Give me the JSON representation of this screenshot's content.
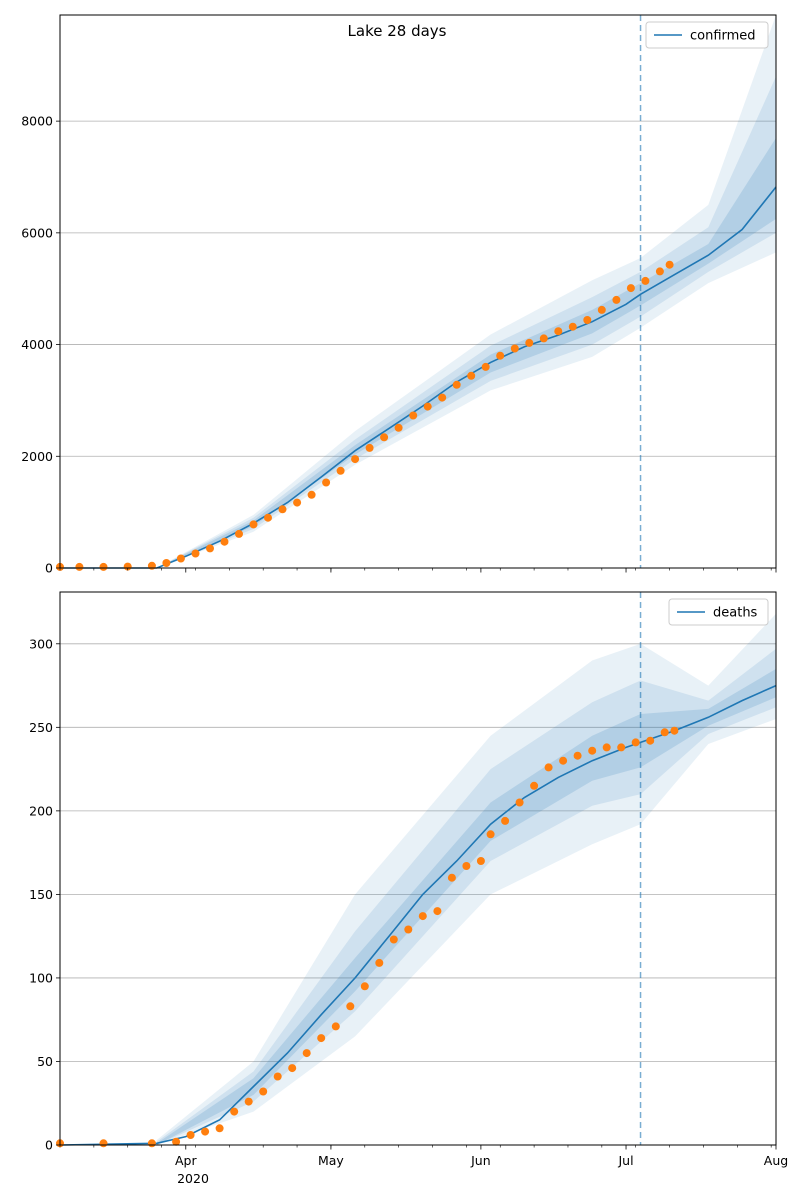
{
  "figure": {
    "title": "Lake 28 days"
  },
  "colors": {
    "line": "#1f77b4",
    "observed": "#ff7f0e",
    "band": "#1f77b4",
    "grid": "#b0b0b0",
    "cutoff": "#1f77b4"
  },
  "chart_data": [
    {
      "type": "line",
      "name": "confirmed-panel",
      "title": "Lake 28 days",
      "legend": [
        "confirmed"
      ],
      "legend_position": "top-right",
      "grid": "horizontal",
      "x_range": [
        "2020-03-06",
        "2020-08-01"
      ],
      "ylim": [
        0,
        9900
      ],
      "yticks": [
        0,
        2000,
        4000,
        6000,
        8000
      ],
      "forecast_start": "2020-07-04",
      "series": [
        {
          "name": "confirmed",
          "kind": "model-median",
          "points": [
            [
              "2020-03-06",
              0
            ],
            [
              "2020-03-26",
              0
            ],
            [
              "2020-04-01",
              210
            ],
            [
              "2020-04-08",
              480
            ],
            [
              "2020-04-15",
              800
            ],
            [
              "2020-04-22",
              1170
            ],
            [
              "2020-04-29",
              1630
            ],
            [
              "2020-05-06",
              2100
            ],
            [
              "2020-05-13",
              2500
            ],
            [
              "2020-05-20",
              2900
            ],
            [
              "2020-05-27",
              3330
            ],
            [
              "2020-06-03",
              3680
            ],
            [
              "2020-06-10",
              3960
            ],
            [
              "2020-06-17",
              4170
            ],
            [
              "2020-06-24",
              4410
            ],
            [
              "2020-07-01",
              4720
            ],
            [
              "2020-07-04",
              4900
            ],
            [
              "2020-07-11",
              5250
            ],
            [
              "2020-07-18",
              5600
            ],
            [
              "2020-07-25",
              6060
            ],
            [
              "2020-08-01",
              6820
            ]
          ]
        },
        {
          "name": "observed",
          "kind": "observed-points",
          "points": [
            [
              "2020-03-06",
              20
            ],
            [
              "2020-03-10",
              20
            ],
            [
              "2020-03-15",
              20
            ],
            [
              "2020-03-20",
              25
            ],
            [
              "2020-03-25",
              40
            ],
            [
              "2020-03-28",
              90
            ],
            [
              "2020-03-31",
              170
            ],
            [
              "2020-04-03",
              260
            ],
            [
              "2020-04-06",
              350
            ],
            [
              "2020-04-09",
              470
            ],
            [
              "2020-04-12",
              610
            ],
            [
              "2020-04-15",
              780
            ],
            [
              "2020-04-18",
              900
            ],
            [
              "2020-04-21",
              1050
            ],
            [
              "2020-04-24",
              1170
            ],
            [
              "2020-04-27",
              1310
            ],
            [
              "2020-04-30",
              1530
            ],
            [
              "2020-05-03",
              1740
            ],
            [
              "2020-05-06",
              1950
            ],
            [
              "2020-05-09",
              2150
            ],
            [
              "2020-05-12",
              2340
            ],
            [
              "2020-05-15",
              2510
            ],
            [
              "2020-05-18",
              2730
            ],
            [
              "2020-05-21",
              2890
            ],
            [
              "2020-05-24",
              3050
            ],
            [
              "2020-05-27",
              3280
            ],
            [
              "2020-05-30",
              3440
            ],
            [
              "2020-06-02",
              3600
            ],
            [
              "2020-06-05",
              3800
            ],
            [
              "2020-06-08",
              3930
            ],
            [
              "2020-06-11",
              4030
            ],
            [
              "2020-06-14",
              4110
            ],
            [
              "2020-06-17",
              4240
            ],
            [
              "2020-06-20",
              4320
            ],
            [
              "2020-06-23",
              4440
            ],
            [
              "2020-06-26",
              4620
            ],
            [
              "2020-06-29",
              4800
            ],
            [
              "2020-07-02",
              5010
            ],
            [
              "2020-07-05",
              5140
            ],
            [
              "2020-07-08",
              5310
            ],
            [
              "2020-07-10",
              5430
            ]
          ]
        }
      ],
      "bands": [
        {
          "level": "outer",
          "lower": [
            [
              "2020-03-26",
              0
            ],
            [
              "2020-04-15",
              650
            ],
            [
              "2020-05-06",
              1850
            ],
            [
              "2020-06-03",
              3180
            ],
            [
              "2020-06-24",
              3780
            ],
            [
              "2020-07-04",
              4300
            ],
            [
              "2020-07-18",
              5100
            ],
            [
              "2020-08-01",
              5650
            ]
          ],
          "upper": [
            [
              "2020-03-26",
              0
            ],
            [
              "2020-04-15",
              950
            ],
            [
              "2020-05-06",
              2450
            ],
            [
              "2020-06-03",
              4180
            ],
            [
              "2020-06-24",
              5150
            ],
            [
              "2020-07-04",
              5550
            ],
            [
              "2020-07-18",
              6500
            ],
            [
              "2020-08-01",
              9900
            ]
          ]
        },
        {
          "level": "middle",
          "lower": [
            [
              "2020-03-26",
              0
            ],
            [
              "2020-04-15",
              700
            ],
            [
              "2020-05-06",
              1950
            ],
            [
              "2020-06-03",
              3350
            ],
            [
              "2020-06-24",
              4000
            ],
            [
              "2020-07-04",
              4500
            ],
            [
              "2020-07-18",
              5300
            ],
            [
              "2020-08-01",
              6000
            ]
          ],
          "upper": [
            [
              "2020-03-26",
              0
            ],
            [
              "2020-04-15",
              900
            ],
            [
              "2020-05-06",
              2300
            ],
            [
              "2020-06-03",
              3980
            ],
            [
              "2020-06-24",
              4850
            ],
            [
              "2020-07-04",
              5300
            ],
            [
              "2020-07-18",
              6100
            ],
            [
              "2020-08-01",
              8800
            ]
          ]
        },
        {
          "level": "inner",
          "lower": [
            [
              "2020-03-26",
              0
            ],
            [
              "2020-04-15",
              750
            ],
            [
              "2020-05-06",
              2030
            ],
            [
              "2020-06-03",
              3500
            ],
            [
              "2020-06-24",
              4200
            ],
            [
              "2020-07-04",
              4700
            ],
            [
              "2020-07-18",
              5450
            ],
            [
              "2020-08-01",
              6250
            ]
          ],
          "upper": [
            [
              "2020-03-26",
              0
            ],
            [
              "2020-04-15",
              850
            ],
            [
              "2020-05-06",
              2200
            ],
            [
              "2020-06-03",
              3820
            ],
            [
              "2020-06-24",
              4620
            ],
            [
              "2020-07-04",
              5100
            ],
            [
              "2020-07-18",
              5800
            ],
            [
              "2020-08-01",
              7700
            ]
          ]
        }
      ]
    },
    {
      "type": "line",
      "name": "deaths-panel",
      "title": "",
      "legend": [
        "deaths"
      ],
      "legend_position": "top-right",
      "grid": "horizontal",
      "x_range": [
        "2020-03-06",
        "2020-08-01"
      ],
      "xticks": [
        "Apr",
        "May",
        "Jun",
        "Jul",
        "Aug"
      ],
      "xtick_year": "2020",
      "ylim": [
        0,
        331
      ],
      "yticks": [
        0,
        50,
        100,
        150,
        200,
        250,
        300
      ],
      "forecast_start": "2020-07-04",
      "series": [
        {
          "name": "deaths",
          "kind": "model-median",
          "points": [
            [
              "2020-03-06",
              0
            ],
            [
              "2020-03-26",
              1
            ],
            [
              "2020-04-01",
              5
            ],
            [
              "2020-04-08",
              15
            ],
            [
              "2020-04-15",
              35
            ],
            [
              "2020-04-22",
              55
            ],
            [
              "2020-04-29",
              78
            ],
            [
              "2020-05-06",
              100
            ],
            [
              "2020-05-13",
              125
            ],
            [
              "2020-05-20",
              150
            ],
            [
              "2020-05-27",
              170
            ],
            [
              "2020-06-03",
              192
            ],
            [
              "2020-06-10",
              208
            ],
            [
              "2020-06-17",
              220
            ],
            [
              "2020-06-24",
              230
            ],
            [
              "2020-07-01",
              238
            ],
            [
              "2020-07-04",
              241
            ],
            [
              "2020-07-11",
              248
            ],
            [
              "2020-07-18",
              256
            ],
            [
              "2020-07-25",
              266
            ],
            [
              "2020-08-01",
              275
            ]
          ]
        },
        {
          "name": "observed",
          "kind": "observed-points",
          "points": [
            [
              "2020-03-06",
              1
            ],
            [
              "2020-03-15",
              1
            ],
            [
              "2020-03-25",
              1
            ],
            [
              "2020-03-30",
              2
            ],
            [
              "2020-04-02",
              6
            ],
            [
              "2020-04-05",
              8
            ],
            [
              "2020-04-08",
              10
            ],
            [
              "2020-04-11",
              20
            ],
            [
              "2020-04-14",
              26
            ],
            [
              "2020-04-17",
              32
            ],
            [
              "2020-04-20",
              41
            ],
            [
              "2020-04-23",
              46
            ],
            [
              "2020-04-26",
              55
            ],
            [
              "2020-04-29",
              64
            ],
            [
              "2020-05-02",
              71
            ],
            [
              "2020-05-05",
              83
            ],
            [
              "2020-05-08",
              95
            ],
            [
              "2020-05-11",
              109
            ],
            [
              "2020-05-14",
              123
            ],
            [
              "2020-05-17",
              129
            ],
            [
              "2020-05-20",
              137
            ],
            [
              "2020-05-23",
              140
            ],
            [
              "2020-05-26",
              160
            ],
            [
              "2020-05-29",
              167
            ],
            [
              "2020-06-01",
              170
            ],
            [
              "2020-06-03",
              186
            ],
            [
              "2020-06-06",
              194
            ],
            [
              "2020-06-09",
              205
            ],
            [
              "2020-06-12",
              215
            ],
            [
              "2020-06-15",
              226
            ],
            [
              "2020-06-18",
              230
            ],
            [
              "2020-06-21",
              233
            ],
            [
              "2020-06-24",
              236
            ],
            [
              "2020-06-27",
              238
            ],
            [
              "2020-06-30",
              238
            ],
            [
              "2020-07-03",
              241
            ],
            [
              "2020-07-06",
              242
            ],
            [
              "2020-07-09",
              247
            ],
            [
              "2020-07-11",
              248
            ]
          ]
        }
      ],
      "bands": [
        {
          "level": "outer",
          "lower": [
            [
              "2020-03-26",
              0
            ],
            [
              "2020-04-15",
              20
            ],
            [
              "2020-05-06",
              65
            ],
            [
              "2020-06-03",
              150
            ],
            [
              "2020-06-24",
              180
            ],
            [
              "2020-07-04",
              192
            ],
            [
              "2020-07-18",
              240
            ],
            [
              "2020-08-01",
              255
            ]
          ],
          "upper": [
            [
              "2020-03-26",
              3
            ],
            [
              "2020-04-15",
              50
            ],
            [
              "2020-05-06",
              150
            ],
            [
              "2020-06-03",
              245
            ],
            [
              "2020-06-24",
              290
            ],
            [
              "2020-07-04",
              300
            ],
            [
              "2020-07-18",
              275
            ],
            [
              "2020-08-01",
              318
            ]
          ]
        },
        {
          "level": "middle",
          "lower": [
            [
              "2020-03-26",
              0
            ],
            [
              "2020-04-15",
              26
            ],
            [
              "2020-05-06",
              80
            ],
            [
              "2020-06-03",
              170
            ],
            [
              "2020-06-24",
              203
            ],
            [
              "2020-07-04",
              210
            ],
            [
              "2020-07-18",
              246
            ],
            [
              "2020-08-01",
              262
            ]
          ],
          "upper": [
            [
              "2020-03-26",
              2
            ],
            [
              "2020-04-15",
              44
            ],
            [
              "2020-05-06",
              128
            ],
            [
              "2020-06-03",
              225
            ],
            [
              "2020-06-24",
              265
            ],
            [
              "2020-07-04",
              278
            ],
            [
              "2020-07-18",
              266
            ],
            [
              "2020-08-01",
              297
            ]
          ]
        },
        {
          "level": "inner",
          "lower": [
            [
              "2020-03-26",
              0
            ],
            [
              "2020-04-15",
              30
            ],
            [
              "2020-05-06",
              92
            ],
            [
              "2020-06-03",
              182
            ],
            [
              "2020-06-24",
              218
            ],
            [
              "2020-07-04",
              226
            ],
            [
              "2020-07-18",
              251
            ],
            [
              "2020-08-01",
              268
            ]
          ],
          "upper": [
            [
              "2020-03-26",
              1
            ],
            [
              "2020-04-15",
              40
            ],
            [
              "2020-05-06",
              112
            ],
            [
              "2020-06-03",
              205
            ],
            [
              "2020-06-24",
              245
            ],
            [
              "2020-07-04",
              258
            ],
            [
              "2020-07-18",
              261
            ],
            [
              "2020-08-01",
              285
            ]
          ]
        }
      ]
    }
  ]
}
